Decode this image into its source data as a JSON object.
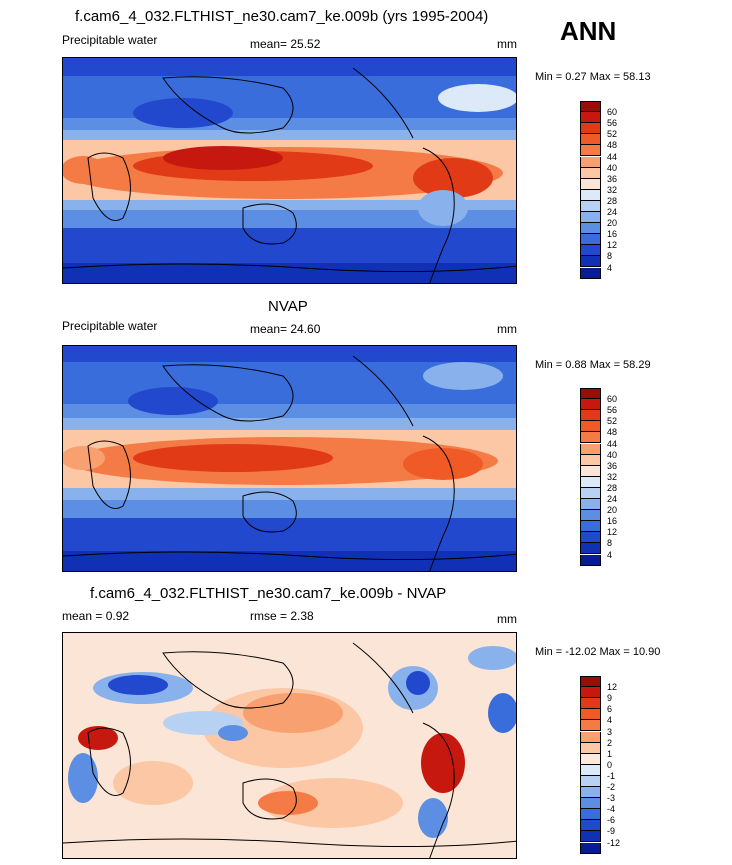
{
  "season_label": "ANN",
  "panels": [
    {
      "key": "model",
      "title": "f.cam6_4_032.FLTHIST_ne30.cam7_ke.009b (yrs 1995-2004)",
      "left_label": "Precipitable water",
      "center_label": "mean=  25.52",
      "unit": "mm",
      "minmax": "Min =   0.27 Max =  58.13",
      "map_name": "model-precipitable-water-map",
      "colorbar": {
        "levels": [
          "60",
          "56",
          "52",
          "48",
          "44",
          "40",
          "36",
          "32",
          "28",
          "24",
          "20",
          "16",
          "12",
          "8",
          "4"
        ],
        "colors": [
          "#9b0c07",
          "#c7180f",
          "#e03a16",
          "#f05a26",
          "#f47b45",
          "#f8a06f",
          "#fbc7a5",
          "#fbe5d6",
          "#dce9f9",
          "#b7d1f3",
          "#89b2ec",
          "#5c8fe3",
          "#3a6ddc",
          "#2248cd",
          "#1030b5",
          "#061e8f"
        ]
      }
    },
    {
      "key": "obs",
      "title": "NVAP",
      "left_label": "Precipitable water",
      "center_label": "mean=  24.60",
      "unit": "mm",
      "minmax": "Min =   0.88 Max =  58.29",
      "map_name": "nvap-precipitable-water-map",
      "colorbar": {
        "levels": [
          "60",
          "56",
          "52",
          "48",
          "44",
          "40",
          "36",
          "32",
          "28",
          "24",
          "20",
          "16",
          "12",
          "8",
          "4"
        ],
        "colors": [
          "#9b0c07",
          "#c7180f",
          "#e03a16",
          "#f05a26",
          "#f47b45",
          "#f8a06f",
          "#fbc7a5",
          "#fbe5d6",
          "#dce9f9",
          "#b7d1f3",
          "#89b2ec",
          "#5c8fe3",
          "#3a6ddc",
          "#2248cd",
          "#1030b5",
          "#061e8f"
        ]
      }
    },
    {
      "key": "diff",
      "title": "f.cam6_4_032.FLTHIST_ne30.cam7_ke.009b - NVAP",
      "left_label": "mean =   0.92",
      "center_label": "rmse =   2.38",
      "unit": "mm",
      "minmax": "Min = -12.02 Max =  10.90",
      "map_name": "difference-precipitable-water-map",
      "colorbar": {
        "levels": [
          "12",
          "9",
          "6",
          "4",
          "3",
          "2",
          "1",
          "0",
          "-1",
          "-2",
          "-3",
          "-4",
          "-6",
          "-9",
          "-12"
        ],
        "colors": [
          "#9b0c07",
          "#c7180f",
          "#e03a16",
          "#f05a26",
          "#f47b45",
          "#f8a06f",
          "#fbc7a5",
          "#fde9dc",
          "#dce9f9",
          "#b7d1f3",
          "#89b2ec",
          "#5c8fe3",
          "#3a6ddc",
          "#2248cd",
          "#1030b5",
          "#061e8f"
        ]
      }
    }
  ]
}
